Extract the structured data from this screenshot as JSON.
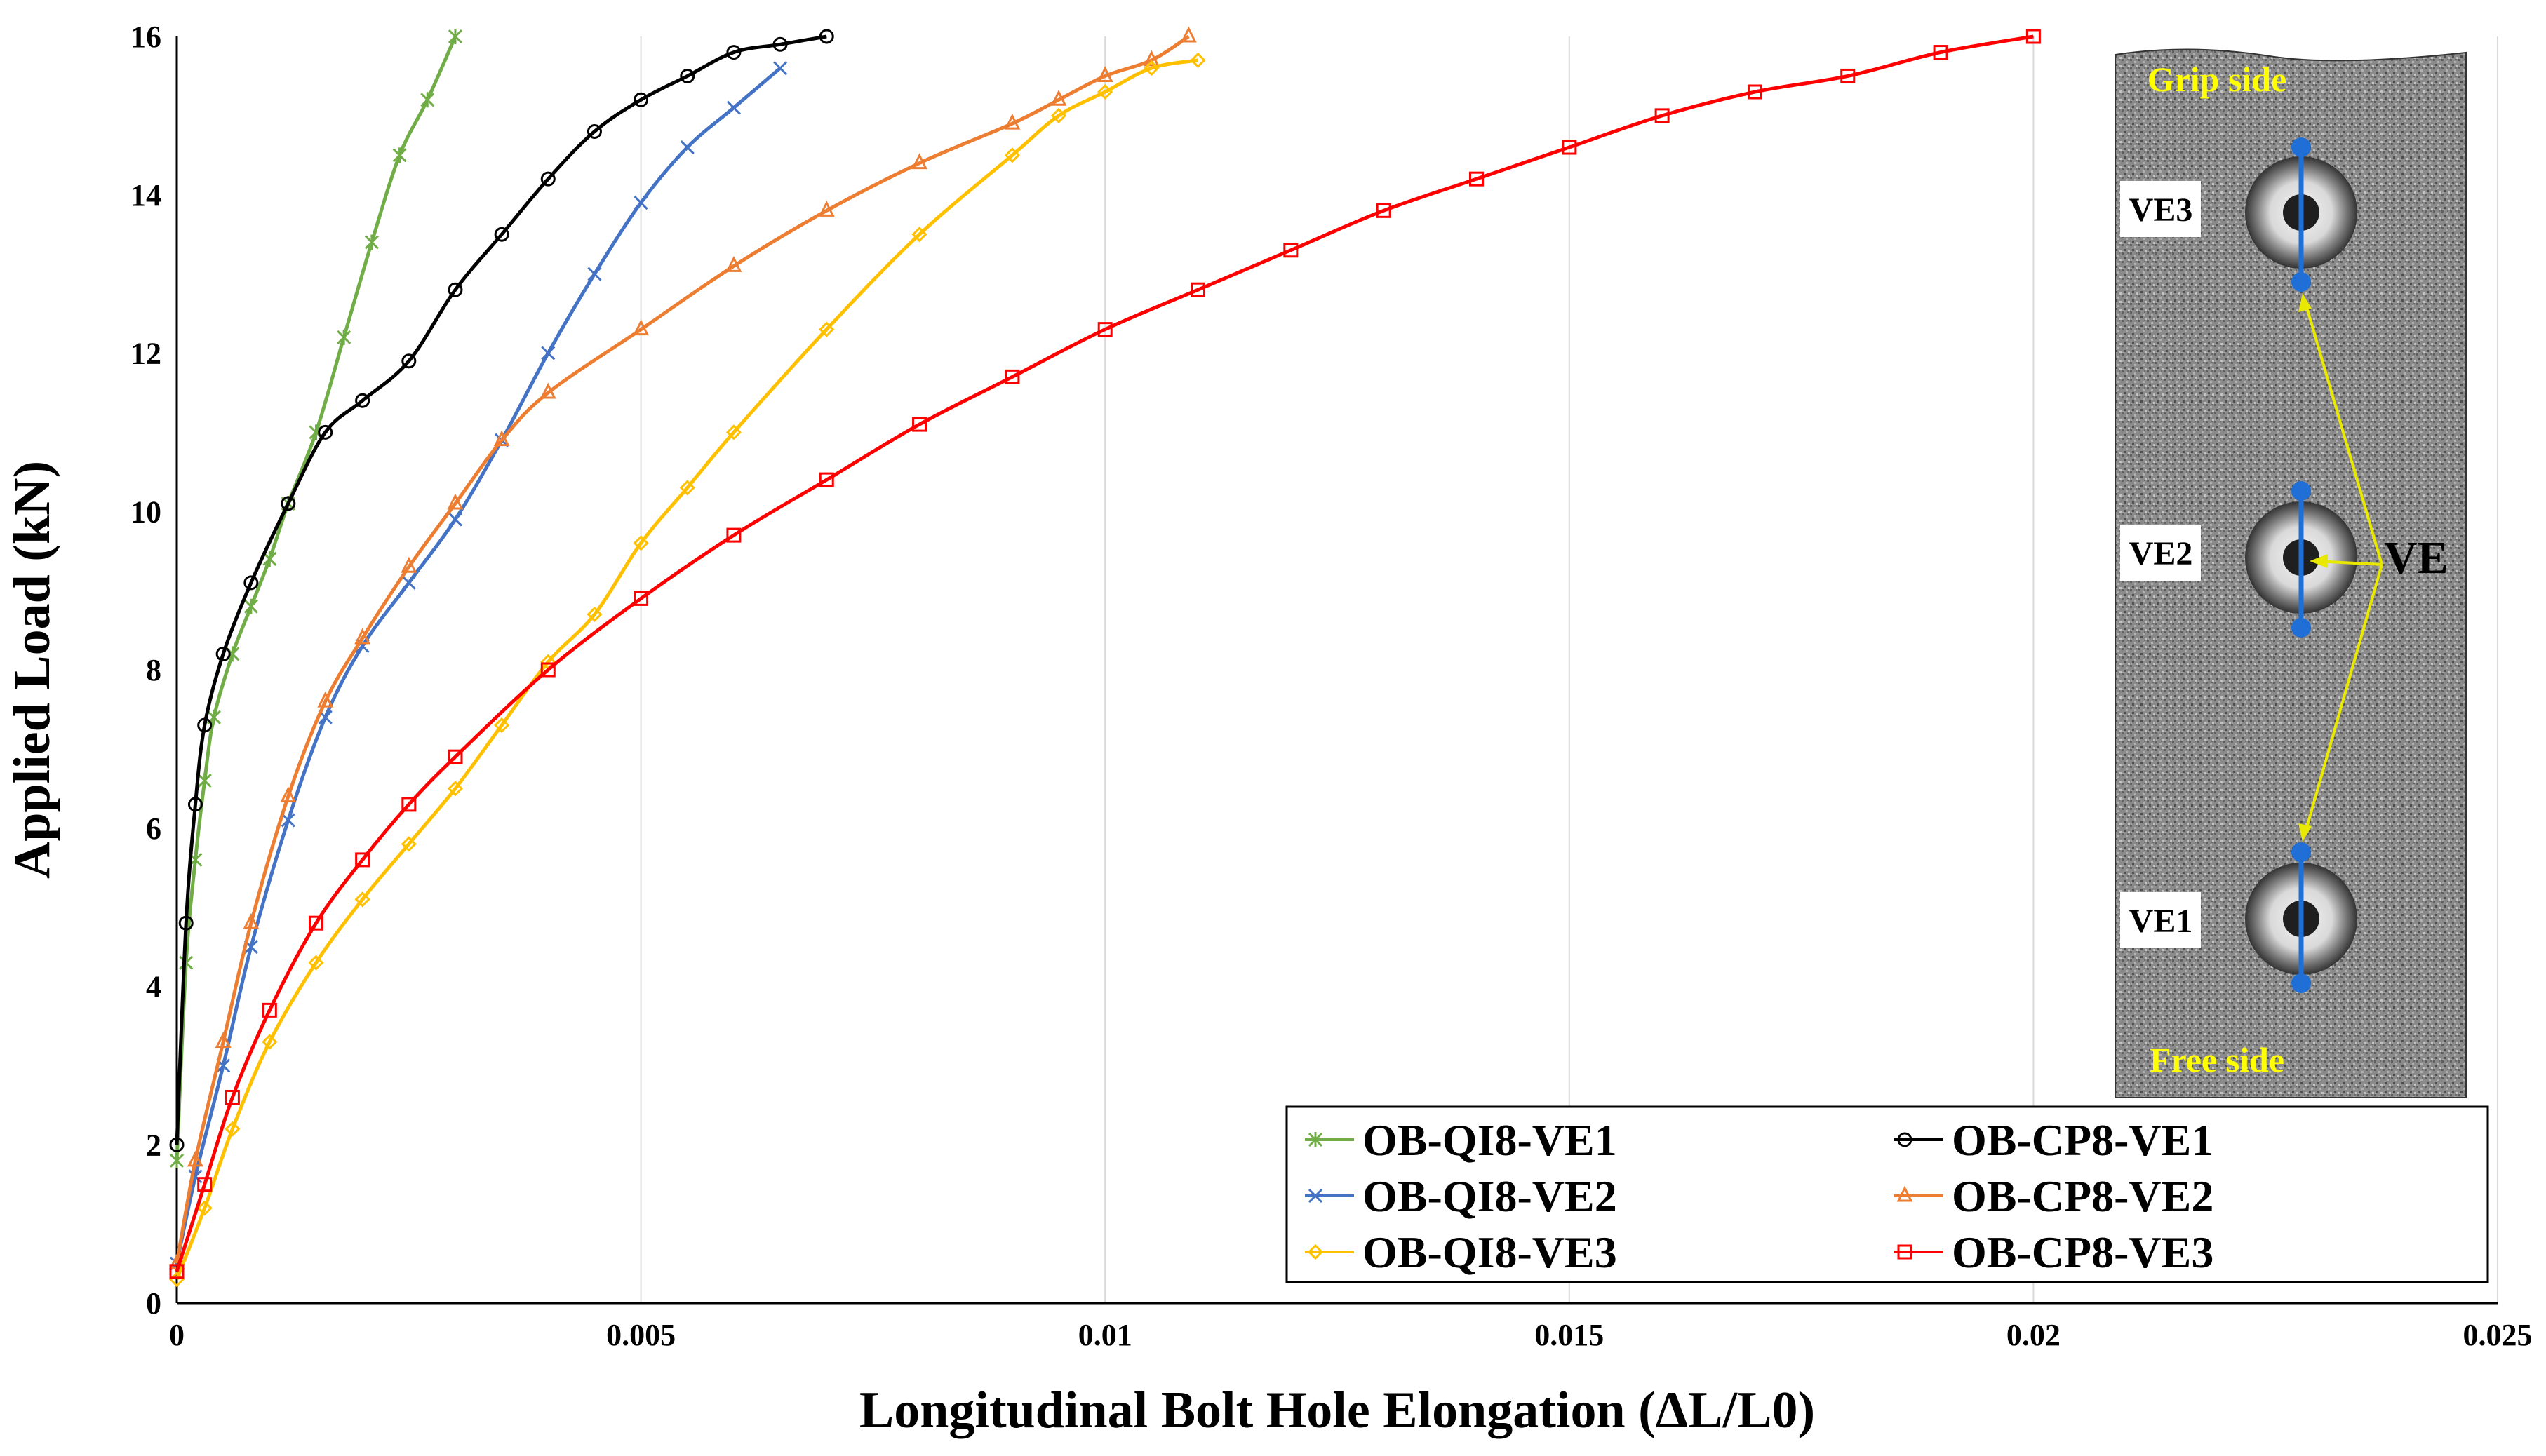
{
  "chart_data": {
    "type": "scatter",
    "xlabel": "Longitudinal Bolt Hole Elongation (ΔL/L0)",
    "ylabel": "Applied Load (kN)",
    "xlim": [
      0,
      0.025
    ],
    "ylim": [
      0,
      16
    ],
    "xticks": [
      "0",
      "0.005",
      "0.01",
      "0.015",
      "0.02",
      "0.025"
    ],
    "yticks": [
      "0",
      "2",
      "4",
      "6",
      "8",
      "10",
      "12",
      "14",
      "16"
    ],
    "grid": "vertical",
    "legend_position": "bottom-right",
    "series": [
      {
        "name": "OB-QI8-VE1",
        "color": "#70ad47",
        "marker": "asterisk",
        "x": [
          0,
          0.0001,
          0.0002,
          0.0003,
          0.0004,
          0.0006,
          0.0008,
          0.001,
          0.0012,
          0.0015,
          0.0018,
          0.0021,
          0.0024,
          0.0027,
          0.003
        ],
        "y": [
          1.8,
          4.3,
          5.6,
          6.6,
          7.4,
          8.2,
          8.8,
          9.4,
          10.1,
          11.0,
          12.2,
          13.4,
          14.5,
          15.2,
          16.0
        ]
      },
      {
        "name": "OB-CP8-VE1",
        "color": "#000000",
        "marker": "circle",
        "x": [
          0,
          0.0001,
          0.0002,
          0.0003,
          0.0005,
          0.0008,
          0.0012,
          0.0016,
          0.002,
          0.0025,
          0.003,
          0.0035,
          0.004,
          0.0045,
          0.005,
          0.0055,
          0.006,
          0.0065,
          0.007
        ],
        "y": [
          2.0,
          4.8,
          6.3,
          7.3,
          8.2,
          9.1,
          10.1,
          11.0,
          11.4,
          11.9,
          12.8,
          13.5,
          14.2,
          14.8,
          15.2,
          15.5,
          15.8,
          15.9,
          16.0
        ]
      },
      {
        "name": "OB-QI8-VE2",
        "color": "#4472c4",
        "marker": "x",
        "x": [
          0,
          0.0002,
          0.0005,
          0.0008,
          0.0012,
          0.0016,
          0.002,
          0.0025,
          0.003,
          0.0035,
          0.004,
          0.0045,
          0.005,
          0.0055,
          0.006,
          0.0065
        ],
        "y": [
          0.5,
          1.6,
          3.0,
          4.5,
          6.1,
          7.4,
          8.3,
          9.1,
          9.9,
          10.9,
          12.0,
          13.0,
          13.9,
          14.6,
          15.1,
          15.6
        ]
      },
      {
        "name": "OB-CP8-VE2",
        "color": "#ed7d31",
        "marker": "triangle",
        "x": [
          0,
          0.0002,
          0.0005,
          0.0008,
          0.0012,
          0.0016,
          0.002,
          0.0025,
          0.003,
          0.0035,
          0.004,
          0.005,
          0.006,
          0.007,
          0.008,
          0.009,
          0.0095,
          0.01,
          0.0105,
          0.0109
        ],
        "y": [
          0.5,
          1.8,
          3.3,
          4.8,
          6.4,
          7.6,
          8.4,
          9.3,
          10.1,
          10.9,
          11.5,
          12.3,
          13.1,
          13.8,
          14.4,
          14.9,
          15.2,
          15.5,
          15.7,
          16.0
        ]
      },
      {
        "name": "OB-QI8-VE3",
        "color": "#ffc000",
        "marker": "diamond",
        "x": [
          0,
          0.0003,
          0.0006,
          0.001,
          0.0015,
          0.002,
          0.0025,
          0.003,
          0.0035,
          0.004,
          0.0045,
          0.005,
          0.0055,
          0.006,
          0.007,
          0.008,
          0.009,
          0.0095,
          0.01,
          0.0105,
          0.011
        ],
        "y": [
          0.3,
          1.2,
          2.2,
          3.3,
          4.3,
          5.1,
          5.8,
          6.5,
          7.3,
          8.1,
          8.7,
          9.6,
          10.3,
          11.0,
          12.3,
          13.5,
          14.5,
          15.0,
          15.3,
          15.6,
          15.7
        ]
      },
      {
        "name": "OB-CP8-VE3",
        "color": "#ff0000",
        "marker": "square",
        "x": [
          0,
          0.0003,
          0.0006,
          0.001,
          0.0015,
          0.002,
          0.0025,
          0.003,
          0.004,
          0.005,
          0.006,
          0.007,
          0.008,
          0.009,
          0.01,
          0.011,
          0.012,
          0.013,
          0.014,
          0.015,
          0.016,
          0.017,
          0.018,
          0.019,
          0.02
        ],
        "y": [
          0.4,
          1.5,
          2.6,
          3.7,
          4.8,
          5.6,
          6.3,
          6.9,
          8.0,
          8.9,
          9.7,
          10.4,
          11.1,
          11.7,
          12.3,
          12.8,
          13.3,
          13.8,
          14.2,
          14.6,
          15.0,
          15.3,
          15.5,
          15.8,
          16.0
        ]
      }
    ]
  },
  "photo": {
    "labels": [
      "VE3",
      "VE2",
      "VE1"
    ],
    "grip_side": "Grip side",
    "free_side": "Free side",
    "ve_label": "VE"
  }
}
